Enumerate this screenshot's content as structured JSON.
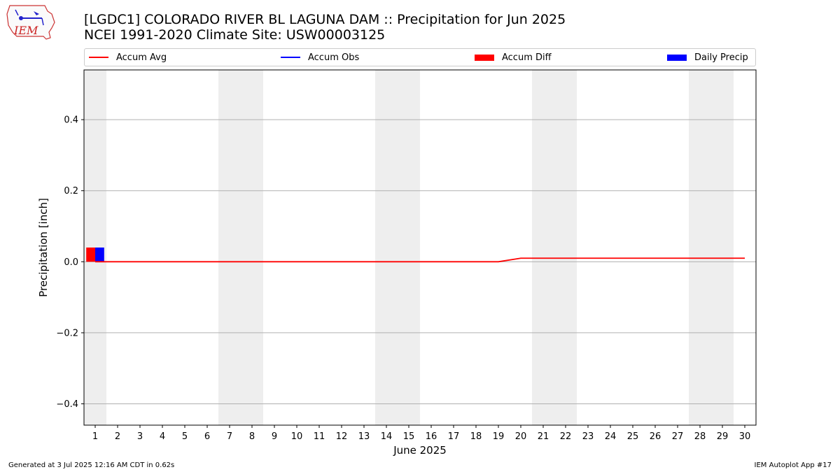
{
  "header": {
    "title": "[LGDC1] COLORADO RIVER BL LAGUNA DAM :: Precipitation for Jun 2025",
    "subtitle": "NCEI 1991-2020 Climate Site: USW00003125",
    "logo_text": "IEM"
  },
  "legend": {
    "items": [
      {
        "label": "Accum Avg",
        "kind": "line",
        "color": "#ff0000"
      },
      {
        "label": "Accum Obs",
        "kind": "line",
        "color": "#0000ff"
      },
      {
        "label": "Accum Diff",
        "kind": "rect",
        "color": "#ff0000"
      },
      {
        "label": "Daily Precip",
        "kind": "rect",
        "color": "#0000ff"
      }
    ]
  },
  "footer": {
    "generated": "Generated at 3 Jul 2025 12:16 AM CDT in 0.62s",
    "app": "IEM Autoplot App #17"
  },
  "chart_data": {
    "type": "bar",
    "title": "[LGDC1] COLORADO RIVER BL LAGUNA DAM :: Precipitation for Jun 2025",
    "xlabel": "June 2025",
    "ylabel": "Precipitation [inch]",
    "x": [
      1,
      2,
      3,
      4,
      5,
      6,
      7,
      8,
      9,
      10,
      11,
      12,
      13,
      14,
      15,
      16,
      17,
      18,
      19,
      20,
      21,
      22,
      23,
      24,
      25,
      26,
      27,
      28,
      29,
      30
    ],
    "xlim": [
      0.5,
      30.5
    ],
    "ylim": [
      -0.46,
      0.54
    ],
    "yticks": [
      -0.4,
      -0.2,
      0.0,
      0.2,
      0.4
    ],
    "ytick_labels": [
      "−0.4",
      "−0.2",
      "0.0",
      "0.2",
      "0.4"
    ],
    "grid": true,
    "weekend_shading_days": [
      1,
      7,
      8,
      14,
      15,
      21,
      22,
      28,
      29
    ],
    "shade_color": "#eeeeee",
    "series": [
      {
        "name": "Accum Avg",
        "type": "line",
        "color": "#ff0000",
        "values": [
          0,
          0,
          0,
          0,
          0,
          0,
          0,
          0,
          0,
          0,
          0,
          0,
          0,
          0,
          0,
          0,
          0,
          0,
          0,
          0.01,
          0.01,
          0.01,
          0.01,
          0.01,
          0.01,
          0.01,
          0.01,
          0.01,
          0.01,
          0.01
        ]
      },
      {
        "name": "Accum Diff",
        "type": "bar",
        "color": "#ff0000",
        "x": [
          1
        ],
        "values": [
          0.04
        ]
      },
      {
        "name": "Daily Precip",
        "type": "bar",
        "color": "#0000ff",
        "x": [
          1
        ],
        "values": [
          0.04
        ]
      }
    ]
  }
}
